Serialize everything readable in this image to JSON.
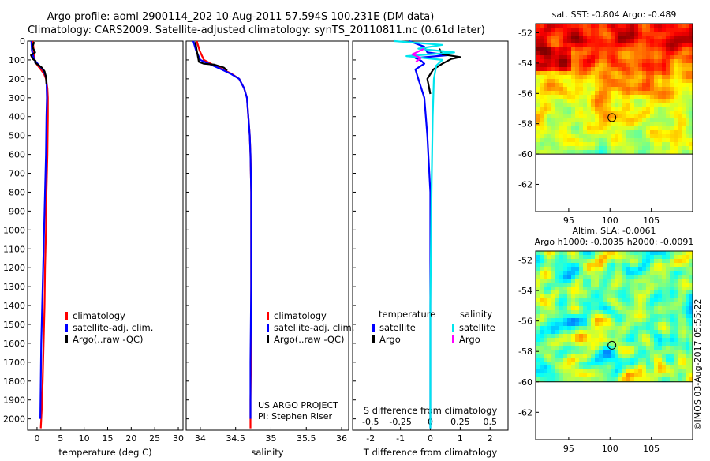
{
  "page": {
    "title_line1": "Argo profile: aoml 2900114_202 10-Aug-2011 57.594S 100.231E (DM data)",
    "title_line2": "Climatology: CARS2009. Satellite-adjusted climatology: synTS_20110811.nc (0.61d later)",
    "project_line1": "US ARGO PROJECT",
    "project_line2": "PI: Stephen Riser",
    "footer_stamp": "©IMOS 03-Aug-2017 05:55:22"
  },
  "colors": {
    "climatology": "#ff0000",
    "satellite": "#0000ff",
    "argo": "#000000",
    "sal_satellite": "#00e5ee",
    "sal_argo": "#ff00ff"
  },
  "chart_data": [
    {
      "id": "temperature",
      "type": "line",
      "xlabel": "temperature (deg C)",
      "ylabel": "",
      "xlim": [
        -2,
        31
      ],
      "ylim": [
        2060,
        0
      ],
      "xticks": [
        "0",
        "5",
        "10",
        "15",
        "20",
        "25",
        "30"
      ],
      "yticks": [
        "0",
        "100",
        "200",
        "300",
        "400",
        "500",
        "600",
        "700",
        "800",
        "900",
        "1000",
        "1100",
        "1200",
        "1300",
        "1400",
        "1500",
        "1600",
        "1700",
        "1800",
        "1900",
        "2000"
      ],
      "legend": {
        "position": "lower-center",
        "entries": [
          "climatology",
          "satellite-adj. clim.",
          "Argo(..raw -QC)"
        ]
      },
      "series": [
        {
          "name": "climatology",
          "color": "#ff0000",
          "x": [
            -0.9,
            -0.7,
            -0.5,
            0.0,
            0.8,
            1.5,
            1.9,
            2.2,
            2.3,
            2.3,
            2.2,
            2.0,
            1.9,
            1.7,
            1.6,
            1.4,
            1.2,
            1.0,
            0.9,
            0.8
          ],
          "y": [
            0,
            50,
            100,
            125,
            150,
            175,
            200,
            250,
            300,
            400,
            600,
            800,
            1000,
            1200,
            1400,
            1600,
            1800,
            1950,
            2000,
            2050
          ]
        },
        {
          "name": "satellite-adj. clim.",
          "color": "#0000ff",
          "x": [
            -1.2,
            -1.1,
            -0.6,
            0.3,
            1.2,
            1.7,
            2.0,
            2.1,
            2.0,
            1.9,
            1.7,
            1.5,
            1.3,
            1.1,
            0.9,
            0.8,
            0.7
          ],
          "y": [
            0,
            50,
            100,
            125,
            150,
            175,
            200,
            300,
            400,
            600,
            800,
            1000,
            1200,
            1400,
            1600,
            1800,
            2000
          ]
        },
        {
          "name": "Argo(..raw -QC)",
          "color": "#000000",
          "x": [
            -0.6,
            -1.0,
            -0.4,
            -1.3,
            -0.9,
            -0.3,
            -0.4,
            0.2,
            1.0,
            1.6,
            1.9,
            2.0
          ],
          "y": [
            5,
            30,
            60,
            75,
            95,
            105,
            115,
            125,
            140,
            160,
            190,
            230
          ]
        }
      ]
    },
    {
      "id": "salinity",
      "type": "line",
      "xlabel": "salinity",
      "ylabel": "",
      "xlim": [
        33.8,
        36.1
      ],
      "ylim": [
        2060,
        0
      ],
      "xticks": [
        "34",
        "34.5",
        "35",
        "35.5",
        "36"
      ],
      "legend": {
        "position": "lower-center",
        "entries": [
          "climatology",
          "satellite-adj. clim.",
          "Argo(..raw -QC)"
        ]
      },
      "series": [
        {
          "name": "climatology",
          "color": "#ff0000",
          "x": [
            33.95,
            33.99,
            34.05,
            34.15,
            34.32,
            34.45,
            34.55,
            34.62,
            34.66,
            34.68,
            34.7,
            34.71,
            34.72,
            34.72,
            34.72,
            34.72,
            34.71,
            34.71
          ],
          "y": [
            0,
            50,
            100,
            120,
            150,
            175,
            200,
            250,
            300,
            400,
            500,
            600,
            800,
            1000,
            1300,
            1600,
            1900,
            2050
          ]
        },
        {
          "name": "satellite-adj. clim.",
          "color": "#0000ff",
          "x": [
            33.9,
            33.94,
            34.0,
            34.12,
            34.3,
            34.44,
            34.55,
            34.62,
            34.66,
            34.68,
            34.7,
            34.71,
            34.72,
            34.72,
            34.72,
            34.71,
            34.71
          ],
          "y": [
            0,
            50,
            100,
            120,
            150,
            175,
            200,
            250,
            300,
            400,
            500,
            600,
            800,
            1000,
            1300,
            1700,
            2000
          ]
        },
        {
          "name": "Argo(..raw -QC)",
          "color": "#000000",
          "x": [
            33.93,
            33.95,
            33.97,
            33.98,
            34.05,
            34.2,
            34.33,
            34.38
          ],
          "y": [
            5,
            50,
            90,
            110,
            120,
            125,
            140,
            155
          ]
        }
      ]
    },
    {
      "id": "differences",
      "type": "line",
      "xlabel": "T difference from climatology",
      "x2label": "S difference from climatology",
      "ylabel": "",
      "xlim": [
        -2.6,
        2.6
      ],
      "x2lim": [
        -0.65,
        0.65
      ],
      "ylim": [
        2060,
        0
      ],
      "xticks": [
        "-2",
        "-1",
        "0",
        "1",
        "2"
      ],
      "x2ticks": [
        "-0.5",
        "-0.25",
        "0",
        "0.25",
        "0.5"
      ],
      "legend": {
        "position": "lower-center",
        "temp_title": "temperature",
        "sal_title": "salinity",
        "entries": [
          "satellite",
          "Argo",
          "satellite",
          "Argo"
        ]
      },
      "series": [
        {
          "name": "satellite",
          "group": "temperature",
          "color": "#0000ff",
          "x": [
            -0.7,
            -0.2,
            -0.1,
            0.6,
            -0.5,
            -0.3,
            -0.2,
            -0.5,
            -0.4,
            -0.2,
            -0.1,
            0.0,
            0.0
          ],
          "y": [
            0,
            30,
            60,
            75,
            90,
            105,
            120,
            150,
            200,
            300,
            500,
            800,
            2050
          ]
        },
        {
          "name": "Argo",
          "group": "temperature",
          "color": "#000000",
          "x": [
            0.3,
            0.4,
            1.0,
            0.7,
            0.4,
            0.1,
            -0.1,
            0.0
          ],
          "y": [
            40,
            70,
            85,
            95,
            120,
            150,
            200,
            280
          ]
        },
        {
          "name": "satellite",
          "group": "salinity",
          "color": "#00e5ee",
          "x": [
            -0.3,
            0.1,
            -0.1,
            0.2,
            -0.2,
            0.1,
            0.05,
            0.03,
            0.02,
            0.01,
            0.0,
            0.0
          ],
          "y": [
            0,
            20,
            40,
            60,
            80,
            100,
            130,
            200,
            400,
            800,
            1400,
            2050
          ]
        },
        {
          "name": "Argo",
          "group": "salinity",
          "color": "#ff00ff",
          "x": [
            -0.05,
            -0.15,
            -0.08,
            -0.12
          ],
          "y": [
            40,
            70,
            90,
            110
          ]
        }
      ]
    },
    {
      "id": "sst_map",
      "type": "heatmap",
      "title": "sat. SST: -0.804  Argo: -0.489",
      "xlim": [
        91,
        110
      ],
      "ylim": [
        -63.8,
        -51.4
      ],
      "xticks": [
        "95",
        "100",
        "105"
      ],
      "yticks": [
        "-52",
        "-54",
        "-56",
        "-58",
        "-60",
        "-62"
      ],
      "marker": {
        "lon": 100.231,
        "lat": -57.594
      },
      "data_extent": {
        "lat_max": -51.4,
        "lat_min": -60
      }
    },
    {
      "id": "sla_map",
      "type": "heatmap",
      "title_line1": "Altim. SLA: -0.0061",
      "title_line2": "Argo h1000: -0.0035 h2000: -0.0091",
      "xlim": [
        91,
        110
      ],
      "ylim": [
        -63.8,
        -51.4
      ],
      "xticks": [
        "95",
        "100",
        "105"
      ],
      "yticks": [
        "-52",
        "-54",
        "-56",
        "-58",
        "-60",
        "-62"
      ],
      "marker": {
        "lon": 100.231,
        "lat": -57.594
      },
      "data_extent": {
        "lat_max": -51.4,
        "lat_min": -60
      }
    }
  ]
}
